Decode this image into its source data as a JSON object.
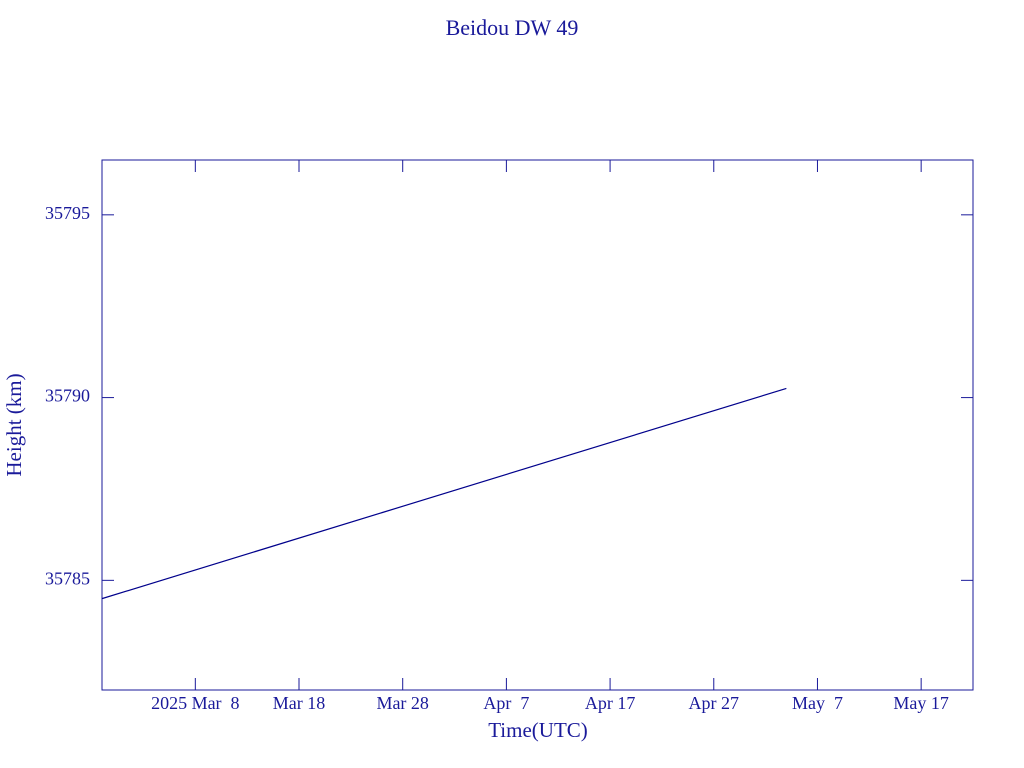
{
  "chart_data": {
    "type": "line",
    "title": "Beidou DW 49",
    "x_label": "Time(UTC)",
    "y_label": "Height (km)",
    "x": [
      "2025-02-27",
      "2025-05-04"
    ],
    "series": [
      {
        "name": "Height",
        "color": "#00008b",
        "values": [
          35784.5,
          35790.25
        ]
      }
    ],
    "xlim": [
      "2025-02-27",
      "2025-05-22"
    ],
    "xticks": [
      {
        "value": "2025-03-08",
        "label": "2025 Mar  8"
      },
      {
        "value": "2025-03-18",
        "label": "Mar 18"
      },
      {
        "value": "2025-03-28",
        "label": "Mar 28"
      },
      {
        "value": "2025-04-07",
        "label": "Apr  7"
      },
      {
        "value": "2025-04-17",
        "label": "Apr 17"
      },
      {
        "value": "2025-04-27",
        "label": "Apr 27"
      },
      {
        "value": "2025-05-07",
        "label": "May  7"
      },
      {
        "value": "2025-05-17",
        "label": "May 17"
      }
    ],
    "ylim": [
      35782,
      35796.5
    ],
    "yticks": [
      35785,
      35790,
      35795
    ],
    "grid": false
  }
}
